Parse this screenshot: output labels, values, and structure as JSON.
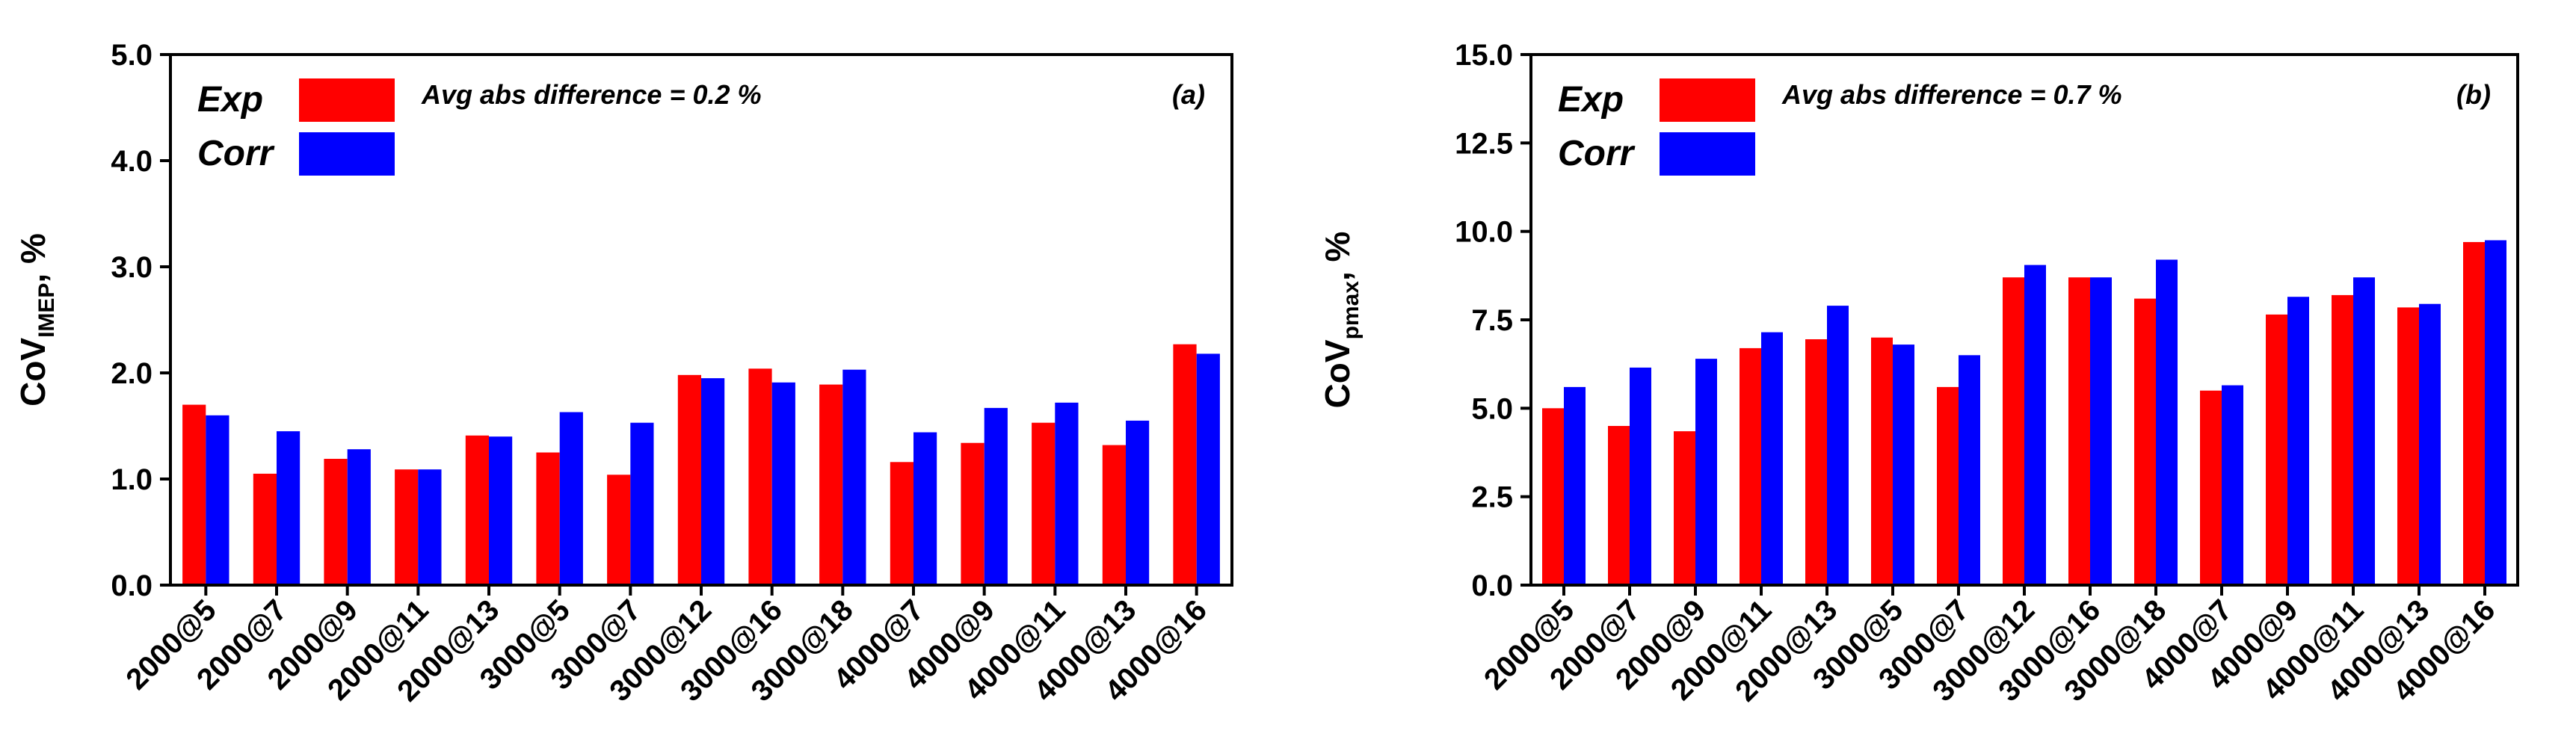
{
  "chart_data": [
    {
      "type": "bar",
      "panel_label": "(a)",
      "ylabel_main": "CoV",
      "ylabel_sub": "IMEP",
      "ylabel_unit": ", %",
      "ylim": [
        0,
        5
      ],
      "yticks": [
        "0.0",
        "1.0",
        "2.0",
        "3.0",
        "4.0",
        "5.0"
      ],
      "ytick_values": [
        0,
        1,
        2,
        3,
        4,
        5
      ],
      "annotation": "Avg abs difference = 0.2 %",
      "categories": [
        "2000@5",
        "2000@7",
        "2000@9",
        "2000@11",
        "2000@13",
        "3000@5",
        "3000@7",
        "3000@12",
        "3000@16",
        "3000@18",
        "4000@7",
        "4000@9",
        "4000@11",
        "4000@13",
        "4000@16"
      ],
      "series": [
        {
          "name": "Exp",
          "color": "#ff0000",
          "values": [
            1.7,
            1.05,
            1.19,
            1.09,
            1.41,
            1.25,
            1.04,
            1.98,
            2.04,
            1.89,
            1.16,
            1.34,
            1.53,
            1.32,
            2.27
          ]
        },
        {
          "name": "Corr",
          "color": "#0000ff",
          "values": [
            1.6,
            1.45,
            1.28,
            1.09,
            1.4,
            1.63,
            1.53,
            1.95,
            1.91,
            2.03,
            1.44,
            1.67,
            1.72,
            1.55,
            2.18
          ]
        }
      ]
    },
    {
      "type": "bar",
      "panel_label": "(b)",
      "ylabel_main": "CoV",
      "ylabel_sub": "pmax",
      "ylabel_unit": ", %",
      "ylim": [
        0,
        15
      ],
      "yticks": [
        "0.0",
        "2.5",
        "5.0",
        "7.5",
        "10.0",
        "12.5",
        "15.0"
      ],
      "ytick_values": [
        0,
        2.5,
        5,
        7.5,
        10,
        12.5,
        15
      ],
      "annotation": "Avg abs difference = 0.7 %",
      "categories": [
        "2000@5",
        "2000@7",
        "2000@9",
        "2000@11",
        "2000@13",
        "3000@5",
        "3000@7",
        "3000@12",
        "3000@16",
        "3000@18",
        "4000@7",
        "4000@9",
        "4000@11",
        "4000@13",
        "4000@16"
      ],
      "series": [
        {
          "name": "Exp",
          "color": "#ff0000",
          "values": [
            5.0,
            4.5,
            4.35,
            6.7,
            6.95,
            7.0,
            5.6,
            8.7,
            8.7,
            8.1,
            5.5,
            7.65,
            8.2,
            7.85,
            9.7
          ]
        },
        {
          "name": "Corr",
          "color": "#0000ff",
          "values": [
            5.6,
            6.15,
            6.4,
            7.15,
            7.9,
            6.8,
            6.5,
            9.05,
            8.7,
            9.2,
            5.65,
            8.15,
            8.7,
            7.95,
            9.75
          ]
        }
      ]
    }
  ]
}
